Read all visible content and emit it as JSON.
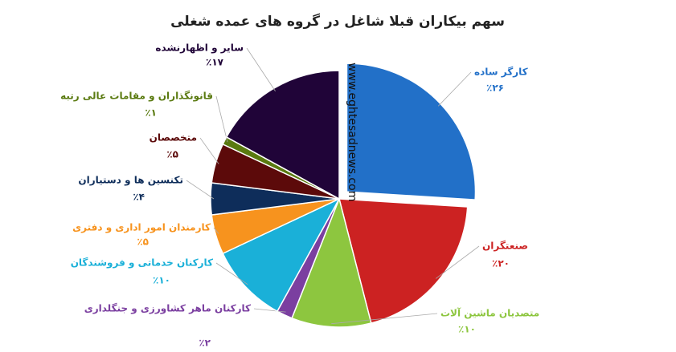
{
  "chart_data": {
    "type": "pie",
    "title": "سهم بیکاران قبلا شاغل در گروه های عمده شغلی",
    "watermark": "www.eghtesadnews.com",
    "categories": [
      "کارگر ساده",
      "صنعتگران",
      "متصدیان ماشین آلات",
      "کارکنان ماهر کشاورزی و جنگلداری",
      "کارکنان خدماتی و فروشندگان",
      "کارمندان امور اداری و دفتری",
      "تکنسین ها و دستیاران",
      "متخصصان",
      "قانونگذاران و مقامات عالی رتبه",
      "سایر و اظهارنشده"
    ],
    "values": [
      26,
      20,
      10,
      2,
      10,
      5,
      4,
      5,
      1,
      17
    ],
    "value_labels": [
      "٪۲۶",
      "٪۲۰",
      "٪۱۰",
      "٪۲",
      "٪۱۰",
      "٪۵",
      "٪۴",
      "٪۵",
      "٪۱",
      "٪۱۷"
    ],
    "colors": [
      "#2270c8",
      "#cc2222",
      "#8dc63f",
      "#7b3fa0",
      "#1ab0d8",
      "#f7931e",
      "#0e2d5a",
      "#5c0a0a",
      "#5a7a10",
      "#200438"
    ]
  }
}
